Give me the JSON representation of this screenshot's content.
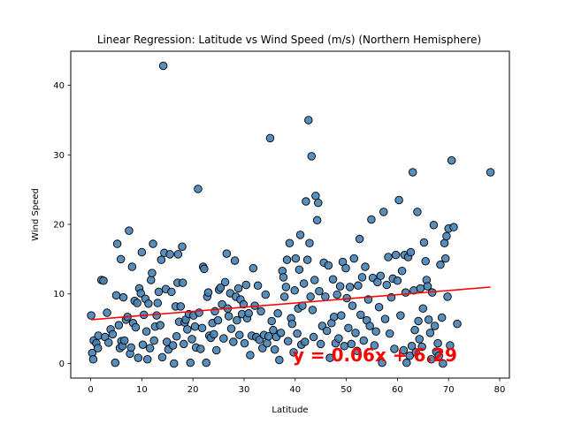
{
  "chart_data": {
    "type": "scatter",
    "title": "Linear Regression: Latitude vs Wind Speed (m/s) (Northern Hemisphere)",
    "xlabel": "Latitude",
    "ylabel": "Wind Speed",
    "xlim": [
      -3.9,
      81.9
    ],
    "ylim": [
      -2.1,
      44.9
    ],
    "xticks": [
      0,
      10,
      20,
      30,
      40,
      50,
      60,
      70,
      80
    ],
    "yticks": [
      0,
      10,
      20,
      30,
      40
    ],
    "grid": false,
    "colors": {
      "point_fill": "#4682b4",
      "point_edge": "#000000",
      "regression_line": "#ff0000",
      "equation_text": "#ff0000"
    },
    "regression": {
      "slope": 0.06,
      "intercept": 6.29,
      "x_range": [
        0.1,
        78.2
      ],
      "equation_label": "y = 0.06x + 6.29",
      "label_anchor": [
        39.5,
        0.3
      ]
    },
    "points": [
      [
        0.1,
        6.9
      ],
      [
        0.3,
        1.5
      ],
      [
        0.5,
        0.6
      ],
      [
        0.6,
        3.3
      ],
      [
        1.1,
        2.9
      ],
      [
        1.4,
        2.2
      ],
      [
        1.5,
        4.0
      ],
      [
        2.1,
        12.0
      ],
      [
        2.5,
        11.9
      ],
      [
        2.8,
        3.8
      ],
      [
        3.2,
        7.3
      ],
      [
        3.5,
        3.0
      ],
      [
        3.9,
        4.9
      ],
      [
        4.3,
        4.2
      ],
      [
        4.8,
        0.1
      ],
      [
        5.0,
        9.8
      ],
      [
        5.2,
        17.2
      ],
      [
        5.5,
        5.5
      ],
      [
        5.7,
        2.2
      ],
      [
        5.9,
        15.0
      ],
      [
        6.0,
        3.2
      ],
      [
        6.2,
        2.5
      ],
      [
        6.4,
        9.5
      ],
      [
        6.6,
        3.3
      ],
      [
        6.9,
        6.3
      ],
      [
        7.2,
        6.7
      ],
      [
        7.5,
        19.1
      ],
      [
        7.7,
        1.4
      ],
      [
        7.9,
        2.3
      ],
      [
        8.1,
        13.9
      ],
      [
        8.3,
        5.8
      ],
      [
        8.6,
        9.0
      ],
      [
        8.8,
        5.2
      ],
      [
        9.1,
        8.7
      ],
      [
        9.3,
        0.8
      ],
      [
        9.5,
        10.8
      ],
      [
        9.8,
        10.1
      ],
      [
        10.0,
        16.0
      ],
      [
        10.2,
        2.7
      ],
      [
        10.4,
        7.0
      ],
      [
        10.7,
        9.3
      ],
      [
        10.9,
        4.6
      ],
      [
        11.1,
        0.6
      ],
      [
        11.3,
        8.6
      ],
      [
        11.6,
        2.2
      ],
      [
        11.8,
        12.0
      ],
      [
        12.0,
        13.0
      ],
      [
        12.2,
        17.2
      ],
      [
        12.4,
        3.3
      ],
      [
        12.6,
        5.3
      ],
      [
        12.9,
        6.9
      ],
      [
        13.1,
        8.7
      ],
      [
        13.3,
        10.3
      ],
      [
        13.6,
        5.5
      ],
      [
        13.8,
        14.9
      ],
      [
        14.0,
        0.9
      ],
      [
        14.2,
        42.8
      ],
      [
        14.4,
        15.9
      ],
      [
        14.7,
        10.7
      ],
      [
        14.9,
        3.1
      ],
      [
        15.2,
        2.0
      ],
      [
        15.5,
        15.7
      ],
      [
        15.8,
        10.3
      ],
      [
        16.1,
        2.6
      ],
      [
        16.3,
        0.0
      ],
      [
        16.6,
        8.2
      ],
      [
        16.8,
        3.9
      ],
      [
        17.0,
        11.6
      ],
      [
        17.1,
        15.7
      ],
      [
        17.3,
        6.0
      ],
      [
        17.6,
        8.2
      ],
      [
        17.9,
        16.8
      ],
      [
        18.0,
        11.6
      ],
      [
        18.2,
        2.8
      ],
      [
        18.4,
        5.9
      ],
      [
        18.6,
        6.3
      ],
      [
        18.9,
        4.9
      ],
      [
        19.2,
        7.1
      ],
      [
        19.5,
        0.1
      ],
      [
        19.8,
        3.5
      ],
      [
        20.1,
        6.9
      ],
      [
        20.4,
        5.3
      ],
      [
        20.6,
        2.3
      ],
      [
        21.0,
        25.1
      ],
      [
        21.2,
        7.3
      ],
      [
        21.5,
        2.1
      ],
      [
        21.8,
        5.1
      ],
      [
        22.0,
        13.9
      ],
      [
        22.2,
        13.6
      ],
      [
        22.6,
        0.1
      ],
      [
        22.8,
        9.6
      ],
      [
        23.0,
        10.2
      ],
      [
        23.2,
        4.0
      ],
      [
        23.5,
        3.7
      ],
      [
        23.8,
        5.8
      ],
      [
        24.1,
        4.2
      ],
      [
        24.3,
        7.5
      ],
      [
        24.6,
        1.9
      ],
      [
        24.9,
        6.2
      ],
      [
        25.1,
        10.6
      ],
      [
        25.4,
        10.9
      ],
      [
        25.7,
        8.5
      ],
      [
        26.0,
        3.6
      ],
      [
        26.3,
        11.7
      ],
      [
        26.6,
        15.8
      ],
      [
        26.8,
        7.9
      ],
      [
        27.0,
        6.8
      ],
      [
        27.3,
        10.1
      ],
      [
        27.5,
        5.0
      ],
      [
        27.9,
        3.1
      ],
      [
        28.2,
        14.8
      ],
      [
        28.4,
        9.6
      ],
      [
        28.6,
        6.2
      ],
      [
        28.9,
        10.8
      ],
      [
        29.1,
        4.1
      ],
      [
        29.3,
        9.2
      ],
      [
        29.6,
        7.1
      ],
      [
        29.9,
        8.5
      ],
      [
        30.1,
        2.9
      ],
      [
        30.4,
        11.3
      ],
      [
        30.6,
        6.5
      ],
      [
        30.9,
        7.2
      ],
      [
        31.2,
        1.2
      ],
      [
        31.5,
        4.0
      ],
      [
        31.8,
        13.7
      ],
      [
        32.1,
        8.3
      ],
      [
        32.4,
        3.8
      ],
      [
        32.7,
        11.2
      ],
      [
        33.0,
        3.4
      ],
      [
        33.3,
        7.5
      ],
      [
        33.6,
        2.2
      ],
      [
        33.9,
        4.1
      ],
      [
        34.2,
        9.9
      ],
      [
        34.5,
        2.9
      ],
      [
        34.8,
        3.9
      ],
      [
        35.1,
        32.4
      ],
      [
        35.4,
        6.1
      ],
      [
        35.7,
        4.8
      ],
      [
        36.0,
        2.0
      ],
      [
        36.3,
        3.8
      ],
      [
        36.6,
        7.2
      ],
      [
        36.9,
        0.5
      ],
      [
        37.2,
        4.4
      ],
      [
        37.5,
        13.3
      ],
      [
        37.7,
        12.4
      ],
      [
        37.9,
        9.6
      ],
      [
        38.2,
        11.0
      ],
      [
        38.4,
        14.9
      ],
      [
        38.6,
        3.2
      ],
      [
        38.9,
        17.3
      ],
      [
        39.2,
        6.5
      ],
      [
        39.4,
        5.7
      ],
      [
        39.7,
        1.6
      ],
      [
        39.9,
        10.5
      ],
      [
        40.1,
        15.1
      ],
      [
        40.4,
        4.3
      ],
      [
        40.6,
        7.9
      ],
      [
        40.8,
        13.5
      ],
      [
        41.0,
        18.5
      ],
      [
        41.2,
        2.7
      ],
      [
        41.4,
        8.3
      ],
      [
        41.7,
        11.5
      ],
      [
        41.9,
        3.1
      ],
      [
        42.1,
        23.3
      ],
      [
        42.4,
        14.9
      ],
      [
        42.6,
        35.0
      ],
      [
        42.8,
        17.3
      ],
      [
        43.0,
        9.6
      ],
      [
        43.2,
        29.8
      ],
      [
        43.4,
        7.7
      ],
      [
        43.6,
        3.8
      ],
      [
        43.8,
        12.0
      ],
      [
        44.0,
        24.1
      ],
      [
        44.3,
        20.6
      ],
      [
        44.5,
        23.1
      ],
      [
        44.7,
        10.4
      ],
      [
        45.0,
        2.8
      ],
      [
        45.3,
        5.4
      ],
      [
        45.6,
        14.5
      ],
      [
        45.9,
        9.6
      ],
      [
        46.2,
        4.7
      ],
      [
        46.5,
        14.1
      ],
      [
        46.8,
        0.8
      ],
      [
        47.1,
        5.8
      ],
      [
        47.4,
        12.1
      ],
      [
        47.6,
        6.7
      ],
      [
        47.9,
        2.9
      ],
      [
        48.2,
        9.9
      ],
      [
        48.5,
        3.6
      ],
      [
        48.8,
        11.1
      ],
      [
        49.0,
        6.9
      ],
      [
        49.3,
        14.6
      ],
      [
        49.6,
        2.5
      ],
      [
        49.9,
        13.7
      ],
      [
        50.1,
        9.4
      ],
      [
        50.4,
        5.1
      ],
      [
        50.7,
        11.0
      ],
      [
        51.0,
        2.8
      ],
      [
        51.2,
        8.3
      ],
      [
        51.5,
        15.1
      ],
      [
        51.8,
        4.4
      ],
      [
        52.1,
        1.8
      ],
      [
        52.3,
        11.2
      ],
      [
        52.6,
        17.9
      ],
      [
        52.8,
        7.0
      ],
      [
        53.1,
        12.4
      ],
      [
        53.4,
        3.3
      ],
      [
        53.7,
        13.9
      ],
      [
        54.0,
        6.2
      ],
      [
        54.3,
        9.2
      ],
      [
        54.6,
        5.4
      ],
      [
        54.9,
        20.7
      ],
      [
        55.2,
        12.3
      ],
      [
        55.5,
        2.6
      ],
      [
        55.8,
        4.6
      ],
      [
        56.1,
        11.7
      ],
      [
        56.4,
        8.1
      ],
      [
        56.7,
        12.6
      ],
      [
        57.0,
        0.1
      ],
      [
        57.3,
        21.8
      ],
      [
        57.6,
        6.4
      ],
      [
        57.9,
        11.3
      ],
      [
        58.2,
        15.3
      ],
      [
        58.5,
        4.3
      ],
      [
        58.8,
        9.5
      ],
      [
        59.1,
        12.2
      ],
      [
        59.4,
        2.1
      ],
      [
        59.7,
        15.6
      ],
      [
        60.0,
        11.9
      ],
      [
        60.3,
        23.5
      ],
      [
        60.6,
        6.9
      ],
      [
        60.9,
        13.3
      ],
      [
        61.2,
        1.9
      ],
      [
        61.4,
        15.6
      ],
      [
        61.6,
        10.2
      ],
      [
        61.8,
        0.1
      ],
      [
        62.1,
        15.3
      ],
      [
        62.4,
        1.1
      ],
      [
        62.6,
        16.0
      ],
      [
        62.8,
        2.5
      ],
      [
        63.0,
        27.5
      ],
      [
        63.2,
        10.5
      ],
      [
        63.4,
        4.8
      ],
      [
        63.6,
        1.6
      ],
      [
        63.9,
        21.8
      ],
      [
        64.1,
        6.1
      ],
      [
        64.3,
        3.5
      ],
      [
        64.5,
        10.8
      ],
      [
        64.8,
        2.4
      ],
      [
        65.0,
        7.9
      ],
      [
        65.2,
        17.4
      ],
      [
        65.5,
        14.7
      ],
      [
        65.7,
        12.0
      ],
      [
        65.9,
        11.1
      ],
      [
        66.1,
        6.3
      ],
      [
        66.4,
        4.4
      ],
      [
        66.6,
        0.6
      ],
      [
        66.8,
        10.2
      ],
      [
        67.1,
        19.9
      ],
      [
        67.3,
        5.4
      ],
      [
        67.6,
        1.7
      ],
      [
        67.9,
        2.9
      ],
      [
        68.1,
        1.1
      ],
      [
        68.4,
        14.2
      ],
      [
        68.7,
        6.6
      ],
      [
        68.9,
        0.0
      ],
      [
        69.2,
        17.3
      ],
      [
        69.4,
        15.1
      ],
      [
        69.6,
        18.3
      ],
      [
        69.8,
        9.6
      ],
      [
        70.0,
        19.4
      ],
      [
        70.3,
        2.6
      ],
      [
        70.6,
        29.2
      ],
      [
        71.0,
        19.6
      ],
      [
        71.7,
        5.7
      ],
      [
        78.2,
        27.5
      ]
    ]
  }
}
